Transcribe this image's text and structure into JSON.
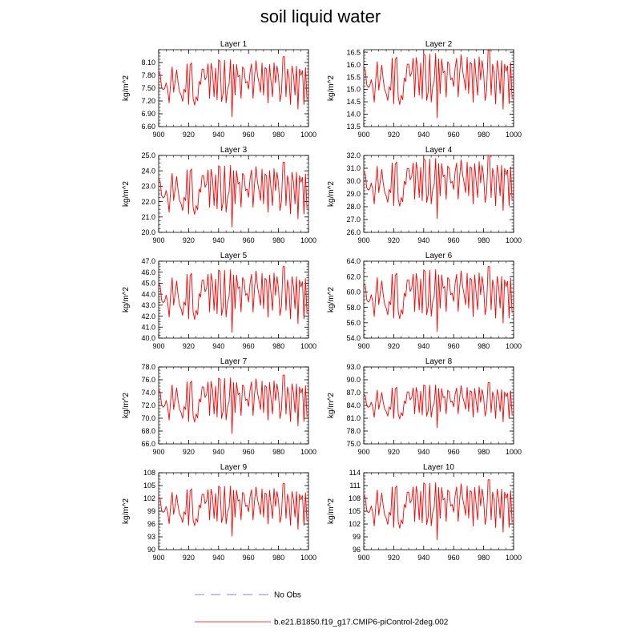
{
  "title": "soil liquid water",
  "legend": [
    {
      "label": "No Obs",
      "color": "#9999ee",
      "style": "dashed"
    },
    {
      "label": "b.e21.B1850.f19_g17.CMIP6-piControl-2deg.002",
      "color": "#ff0000",
      "style": "solid"
    }
  ],
  "series_seed": [
    0.45,
    0.38,
    -0.05,
    -0.12,
    -0.08,
    0.1,
    -0.1,
    -0.55,
    0.1,
    0.62,
    -0.2,
    0.15,
    0.52,
    0.1,
    -0.2,
    -0.3,
    -0.5,
    -0.1,
    -0.2,
    0.72,
    -0.6,
    0.68,
    0.75,
    -0.4,
    -0.62,
    -0.35,
    -0.48,
    0.15,
    0.05,
    0.55,
    0.55,
    0.2,
    0.3,
    0.72,
    -0.4,
    0.74,
    0.45,
    -0.35,
    0.58,
    -0.45,
    0.85,
    0.8,
    -0.5,
    -0.25,
    0.84,
    -0.55,
    -0.1,
    0.05,
    0.86,
    -1.0,
    0.7,
    -0.3,
    0.7,
    0.3,
    0.35,
    -0.4,
    0.62,
    0.55,
    0.1,
    0.15,
    -0.1,
    0.45,
    0.72,
    -0.4,
    0.3,
    0.82,
    0.35,
    0.1,
    -0.2,
    0.75,
    -0.3,
    0.6,
    0.55,
    -0.55,
    0.7,
    0.15,
    -0.35,
    0.76,
    0.1,
    0.65,
    0.3,
    -0.5,
    -0.2,
    0.95,
    0.95,
    -0.35,
    0.55,
    0.3,
    -0.6,
    0.65,
    0.35,
    -0.3,
    0.65,
    -0.75,
    0.55,
    0.35,
    0.5,
    -0.6,
    0.6,
    -0.45
  ],
  "chart_data": [
    {
      "type": "line",
      "title": "Layer 1",
      "ylabel": "kg/m^2",
      "xlim": [
        900,
        1000
      ],
      "ylim": [
        6.6,
        8.4
      ],
      "xticks": [
        "900",
        "920",
        "940",
        "960",
        "980",
        "1000"
      ],
      "yticks": [
        "6.60",
        "6.90",
        "7.20",
        "7.50",
        "7.80",
        "8.10"
      ],
      "ytick_values": [
        6.6,
        6.9,
        7.2,
        7.5,
        7.8,
        8.1
      ],
      "center": 7.55,
      "amplitude": 0.8,
      "series_name": "b.e21.B1850.f19_g17.CMIP6-piControl-2deg.002"
    },
    {
      "type": "line",
      "title": "Layer 2",
      "ylabel": "kg/m^2",
      "xlim": [
        900,
        1000
      ],
      "ylim": [
        13.5,
        16.6
      ],
      "xticks": [
        "900",
        "920",
        "940",
        "960",
        "980",
        "1000"
      ],
      "yticks": [
        "13.5",
        "14.0",
        "14.5",
        "15.0",
        "15.5",
        "16.0",
        "16.5"
      ],
      "ytick_values": [
        13.5,
        14.0,
        14.5,
        15.0,
        15.5,
        16.0,
        16.5
      ],
      "center": 15.25,
      "amplitude": 1.55,
      "series_name": "b.e21.B1850.f19_g17.CMIP6-piControl-2deg.002"
    },
    {
      "type": "line",
      "title": "Layer 3",
      "ylabel": "kg/m^2",
      "xlim": [
        900,
        1000
      ],
      "ylim": [
        20.0,
        25.0
      ],
      "xticks": [
        "900",
        "920",
        "940",
        "960",
        "980",
        "1000"
      ],
      "yticks": [
        "20.0",
        "21.0",
        "22.0",
        "23.0",
        "24.0",
        "25.0"
      ],
      "ytick_values": [
        20,
        21,
        22,
        23,
        24,
        25
      ],
      "center": 22.5,
      "amplitude": 2.4,
      "series_name": "b.e21.B1850.f19_g17.CMIP6-piControl-2deg.002"
    },
    {
      "type": "line",
      "title": "Layer 4",
      "ylabel": "kg/m^2",
      "xlim": [
        900,
        1000
      ],
      "ylim": [
        26.0,
        32.0
      ],
      "xticks": [
        "900",
        "920",
        "940",
        "960",
        "980",
        "1000"
      ],
      "yticks": [
        "26.0",
        "27.0",
        "28.0",
        "29.0",
        "30.0",
        "31.0",
        "32.0"
      ],
      "ytick_values": [
        26,
        27,
        28,
        29,
        30,
        31,
        32
      ],
      "center": 29.6,
      "amplitude": 2.8,
      "series_name": "b.e21.B1850.f19_g17.CMIP6-piControl-2deg.002"
    },
    {
      "type": "line",
      "title": "Layer 5",
      "ylabel": "kg/m^2",
      "xlim": [
        900,
        1000
      ],
      "ylim": [
        40.0,
        47.0
      ],
      "xticks": [
        "900",
        "920",
        "940",
        "960",
        "980",
        "1000"
      ],
      "yticks": [
        "40.0",
        "41.0",
        "42.0",
        "43.0",
        "44.0",
        "45.0",
        "46.0",
        "47.0"
      ],
      "ytick_values": [
        40,
        41,
        42,
        43,
        44,
        45,
        46,
        47
      ],
      "center": 43.6,
      "amplitude": 3.4,
      "series_name": "b.e21.B1850.f19_g17.CMIP6-piControl-2deg.002"
    },
    {
      "type": "line",
      "title": "Layer 6",
      "ylabel": "kg/m^2",
      "xlim": [
        900,
        1000
      ],
      "ylim": [
        54.0,
        64.0
      ],
      "xticks": [
        "900",
        "920",
        "940",
        "960",
        "980",
        "1000"
      ],
      "yticks": [
        "54.0",
        "56.0",
        "58.0",
        "60.0",
        "62.0",
        "64.0"
      ],
      "ytick_values": [
        54,
        56,
        58,
        60,
        62,
        64
      ],
      "center": 59.2,
      "amplitude": 4.8,
      "series_name": "b.e21.B1850.f19_g17.CMIP6-piControl-2deg.002"
    },
    {
      "type": "line",
      "title": "Layer 7",
      "ylabel": "kg/m^2",
      "xlim": [
        900,
        1000
      ],
      "ylim": [
        66.0,
        78.0
      ],
      "xticks": [
        "900",
        "920",
        "940",
        "960",
        "980",
        "1000"
      ],
      "yticks": [
        "66.0",
        "68.0",
        "70.0",
        "72.0",
        "74.0",
        "76.0",
        "78.0"
      ],
      "ytick_values": [
        66,
        68,
        70,
        72,
        74,
        76,
        78
      ],
      "center": 72.3,
      "amplitude": 5.2,
      "series_name": "b.e21.B1850.f19_g17.CMIP6-piControl-2deg.002"
    },
    {
      "type": "line",
      "title": "Layer 8",
      "ylabel": "kg/m^2",
      "xlim": [
        900,
        1000
      ],
      "ylim": [
        75.0,
        93.0
      ],
      "xticks": [
        "900",
        "920",
        "940",
        "960",
        "980",
        "1000"
      ],
      "yticks": [
        "75.0",
        "78.0",
        "81.0",
        "84.0",
        "87.0",
        "90.0",
        "93.0"
      ],
      "ytick_values": [
        75,
        78,
        81,
        84,
        87,
        90,
        93
      ],
      "center": 84.2,
      "amplitude": 6.0,
      "series_name": "b.e21.B1850.f19_g17.CMIP6-piControl-2deg.002"
    },
    {
      "type": "line",
      "title": "Layer 9",
      "ylabel": "kg/m^2",
      "xlim": [
        900,
        1000
      ],
      "ylim": [
        90,
        108
      ],
      "xticks": [
        "900",
        "920",
        "940",
        "960",
        "980",
        "1000"
      ],
      "yticks": [
        "90",
        "93",
        "96",
        "99",
        "102",
        "105",
        "108"
      ],
      "ytick_values": [
        90,
        93,
        96,
        99,
        102,
        105,
        108
      ],
      "center": 99.5,
      "amplitude": 7.0,
      "series_name": "b.e21.B1850.f19_g17.CMIP6-piControl-2deg.002"
    },
    {
      "type": "line",
      "title": "Layer 10",
      "ylabel": "kg/m^2",
      "xlim": [
        900,
        1000
      ],
      "ylim": [
        96,
        114
      ],
      "xticks": [
        "900",
        "920",
        "940",
        "960",
        "980",
        "1000"
      ],
      "yticks": [
        "96",
        "99",
        "102",
        "105",
        "108",
        "111",
        "114"
      ],
      "ytick_values": [
        96,
        99,
        102,
        105,
        108,
        111,
        114
      ],
      "center": 105.5,
      "amplitude": 8.0,
      "series_name": "b.e21.B1850.f19_g17.CMIP6-piControl-2deg.002"
    }
  ]
}
